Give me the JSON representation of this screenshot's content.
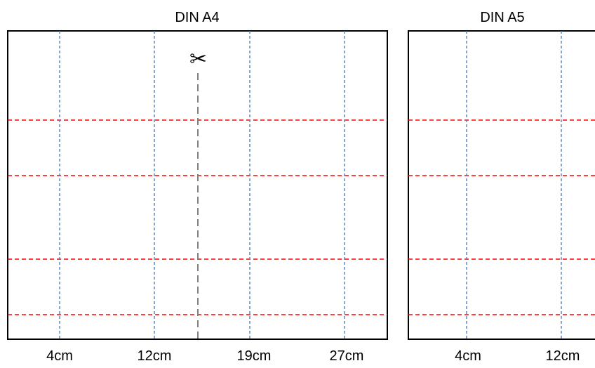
{
  "sheets": [
    {
      "title": "DIN A4",
      "vertical_lines": [
        {
          "label": "4cm"
        },
        {
          "label": "12cm"
        },
        {
          "label": "19cm"
        },
        {
          "label": "27cm"
        }
      ],
      "cut_line": true,
      "horizontal_fold_lines": 4
    },
    {
      "title": "DIN A5",
      "vertical_lines": [
        {
          "label": "4cm"
        },
        {
          "label": "12cm"
        }
      ],
      "cut_line": false,
      "horizontal_fold_lines": 4
    }
  ],
  "icons": {
    "cut": "scissors-icon"
  },
  "colors": {
    "border": "#000000",
    "vertical_dash": "#4f81bd",
    "horizontal_dash": "#ff0000",
    "cut_dash": "#7f7f7f"
  }
}
